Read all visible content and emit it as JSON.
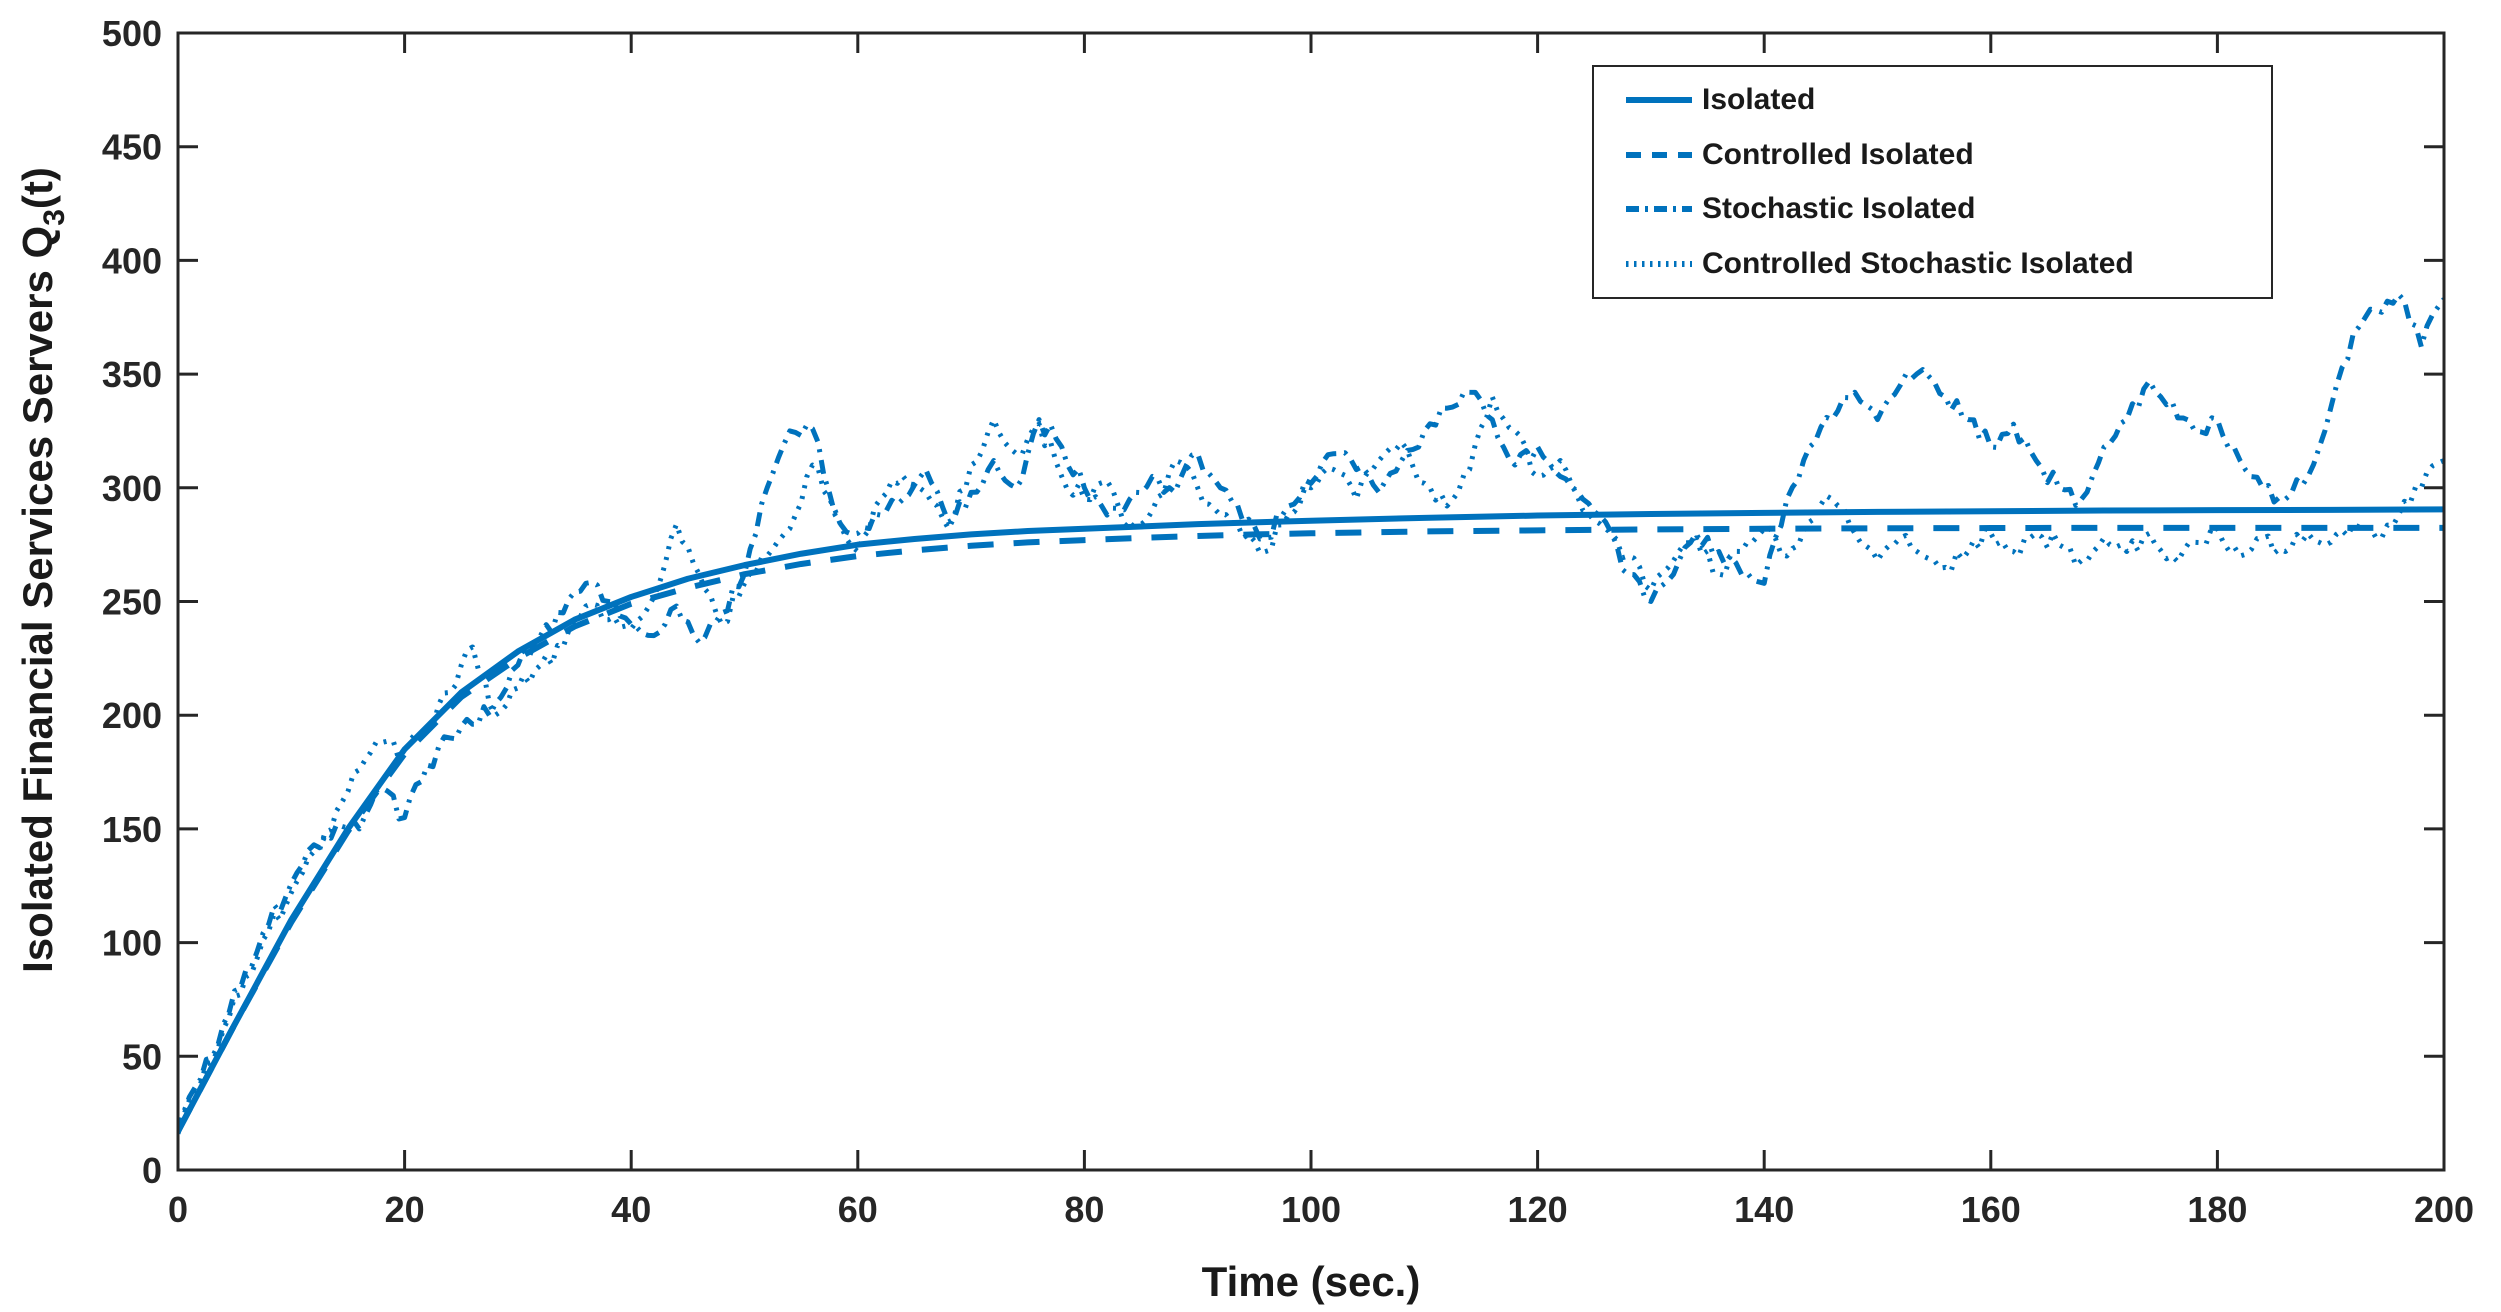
{
  "figure": {
    "background": "#ffffff"
  },
  "axes": {
    "xlabel": "Time (sec.)",
    "ylabel_main": "Isolated Financial Services Servers Q",
    "ylabel_sub": "3",
    "ylabel_suffix": "(t)",
    "axis_color": "#262626",
    "label_color": "#1a1a1a"
  },
  "chart_data": {
    "type": "line",
    "title": "",
    "xlabel": "Time (sec.)",
    "ylabel": "Isolated Financial Services Servers Q_3(t)",
    "xlim": [
      0,
      200
    ],
    "ylim": [
      0,
      500
    ],
    "xticks": [
      0,
      20,
      40,
      60,
      80,
      100,
      120,
      140,
      160,
      180,
      200
    ],
    "yticks": [
      0,
      50,
      100,
      150,
      200,
      250,
      300,
      350,
      400,
      450,
      500
    ],
    "grid": false,
    "legend_position": "top-right",
    "line_color": "#0072BD",
    "series": [
      {
        "name": "Isolated",
        "style": "solid",
        "noisy": false,
        "x": [
          0,
          5,
          10,
          15,
          20,
          25,
          30,
          35,
          40,
          45,
          50,
          55,
          60,
          65,
          70,
          75,
          80,
          85,
          90,
          95,
          100,
          110,
          120,
          130,
          140,
          150,
          160,
          170,
          180,
          190,
          200
        ],
        "y": [
          17,
          64,
          110,
          150,
          185,
          210,
          228,
          242,
          252,
          260,
          266,
          271,
          275,
          277.5,
          279.5,
          281,
          282,
          283,
          284,
          284.8,
          285.5,
          286.8,
          287.8,
          288.5,
          289,
          289.4,
          289.7,
          290,
          290.2,
          290.3,
          290.5
        ]
      },
      {
        "name": "Controlled Isolated",
        "style": "dashed",
        "noisy": false,
        "x": [
          0,
          5,
          10,
          15,
          20,
          25,
          30,
          35,
          40,
          45,
          50,
          55,
          60,
          65,
          70,
          75,
          80,
          85,
          90,
          95,
          100,
          110,
          120,
          130,
          140,
          150,
          160,
          170,
          180,
          190,
          200
        ],
        "y": [
          17,
          64,
          109,
          149,
          183,
          208,
          225,
          239,
          249,
          256,
          262,
          266.5,
          270,
          272.5,
          274.5,
          276,
          277,
          278,
          278.8,
          279.5,
          280,
          280.8,
          281.3,
          281.7,
          282,
          282.2,
          282.3,
          282.4,
          282.4,
          282.4,
          282.4
        ]
      },
      {
        "name": "Stochastic Isolated",
        "style": "dashdot",
        "noisy": true,
        "x_start": 0,
        "x_step": 2,
        "y": [
          17,
          40,
          64,
          88,
          108,
          126,
          143,
          152,
          150,
          168,
          155,
          178,
          190,
          196,
          205,
          222,
          235,
          245,
          258,
          250,
          240,
          235,
          248,
          232,
          245,
          262,
          300,
          325,
          326,
          288,
          280,
          288,
          295,
          308,
          285,
          298,
          312,
          300,
          330,
          318,
          300,
          288,
          295,
          305,
          298,
          315,
          300,
          285,
          278,
          292,
          302,
          315,
          308,
          298,
          312,
          325,
          335,
          342,
          330,
          310,
          318,
          305,
          295,
          285,
          262,
          250,
          262,
          280,
          272,
          262,
          258,
          295,
          318,
          330,
          342,
          330,
          345,
          352,
          340,
          330,
          318,
          328,
          312,
          300,
          295,
          318,
          330,
          347,
          338,
          325,
          330,
          312,
          300,
          295,
          305,
          335,
          368,
          378,
          385,
          362,
          383
        ]
      },
      {
        "name": "Controlled Stochastic Isolated",
        "style": "dotted",
        "noisy": true,
        "x_start": 0,
        "x_step": 2,
        "y": [
          16,
          38,
          62,
          85,
          105,
          122,
          140,
          158,
          176,
          188,
          183,
          195,
          210,
          230,
          200,
          212,
          222,
          230,
          248,
          242,
          238,
          252,
          284,
          262,
          240,
          258,
          270,
          282,
          310,
          290,
          272,
          295,
          305,
          298,
          282,
          310,
          330,
          315,
          328,
          305,
          295,
          303,
          282,
          290,
          312,
          300,
          288,
          278,
          272,
          288,
          300,
          308,
          295,
          312,
          320,
          302,
          292,
          308,
          340,
          325,
          305,
          312,
          290,
          282,
          270,
          255,
          268,
          278,
          262,
          272,
          282,
          270,
          285,
          295,
          280,
          268,
          278,
          270,
          265,
          272,
          280,
          272,
          280,
          275,
          268,
          278,
          272,
          280,
          270,
          276,
          282,
          270,
          278,
          272,
          280,
          276,
          284,
          278,
          288,
          300,
          312
        ]
      }
    ]
  }
}
